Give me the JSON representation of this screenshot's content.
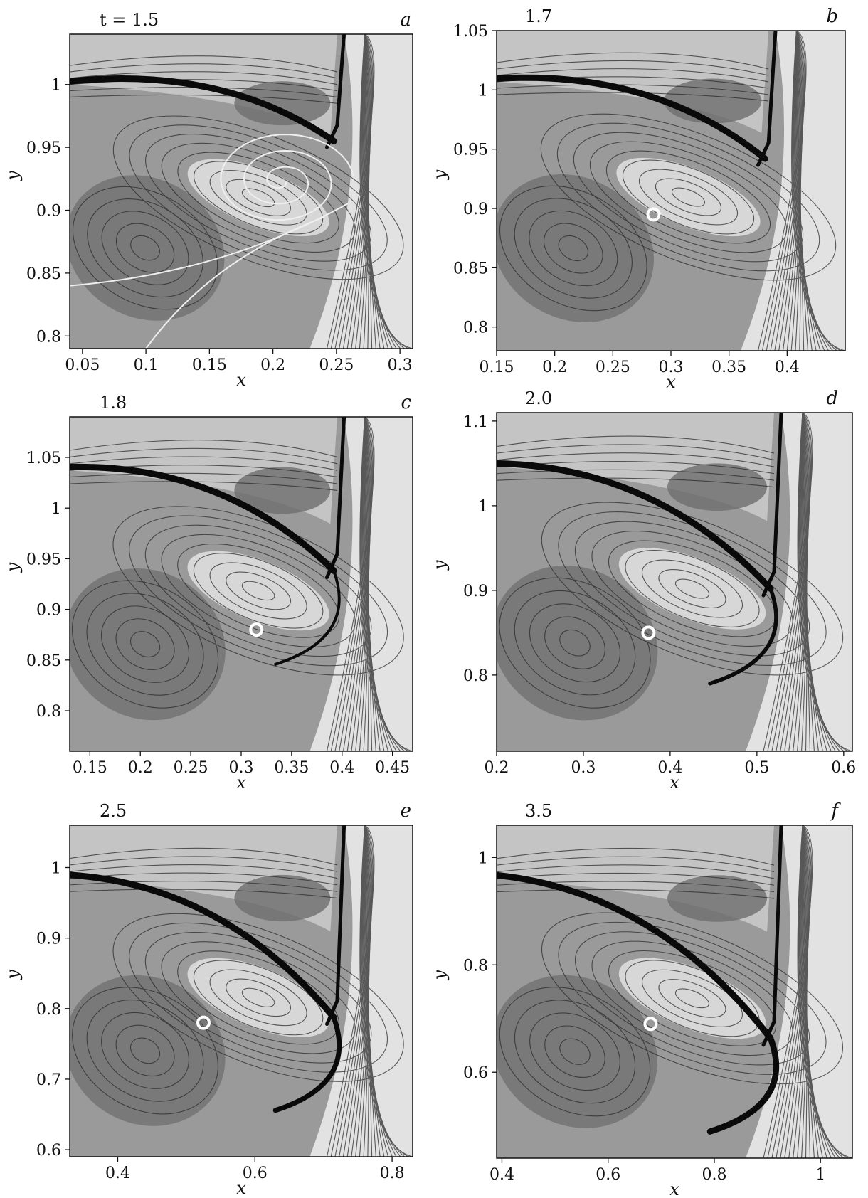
{
  "figure": {
    "time_prefix": "t = ",
    "panels": [
      {
        "letter": "a",
        "time": "1.5",
        "time_text": "t = 1.5",
        "xlabel": "x",
        "ylabel": "y",
        "xticks": [
          "0.05",
          "0.1",
          "0.15",
          "0.2",
          "0.25",
          "0.3"
        ],
        "yticks": [
          "0.8",
          "0.85",
          "0.9",
          "0.95",
          "1"
        ],
        "xlim": [
          0.04,
          0.31
        ],
        "ylim": [
          0.79,
          1.04
        ],
        "marker": null,
        "spiral_center": [
          0.207,
          0.923
        ]
      },
      {
        "letter": "b",
        "time": "1.7",
        "time_text": "1.7",
        "xlabel": "x",
        "ylabel": "y",
        "xticks": [
          "0.15",
          "0.2",
          "0.25",
          "0.3",
          "0.35",
          "0.4"
        ],
        "yticks": [
          "0.8",
          "0.85",
          "0.9",
          "0.95",
          "1",
          "1.05"
        ],
        "xlim": [
          0.15,
          0.45
        ],
        "ylim": [
          0.78,
          1.05
        ],
        "marker": [
          0.285,
          0.895
        ]
      },
      {
        "letter": "c",
        "time": "1.8",
        "time_text": "1.8",
        "xlabel": "x",
        "ylabel": "y",
        "xticks": [
          "0.15",
          "0.2",
          "0.25",
          "0.3",
          "0.35",
          "0.4",
          "0.45"
        ],
        "yticks": [
          "0.8",
          "0.85",
          "0.9",
          "0.95",
          "1",
          "1.05"
        ],
        "xlim": [
          0.13,
          0.47
        ],
        "ylim": [
          0.76,
          1.09
        ],
        "marker": [
          0.315,
          0.88
        ]
      },
      {
        "letter": "d",
        "time": "2.0",
        "time_text": "2.0",
        "xlabel": "x",
        "ylabel": "y",
        "xticks": [
          "0.2",
          "0.3",
          "0.4",
          "0.5",
          "0.6"
        ],
        "yticks": [
          "0.8",
          "0.9",
          "1",
          "1.1"
        ],
        "xlim": [
          0.2,
          0.61
        ],
        "ylim": [
          0.71,
          1.11
        ],
        "marker": [
          0.375,
          0.85
        ]
      },
      {
        "letter": "e",
        "time": "2.5",
        "time_text": "2.5",
        "xlabel": "x",
        "ylabel": "y",
        "xticks": [
          "0.4",
          "0.6",
          "0.8"
        ],
        "yticks": [
          "0.6",
          "0.7",
          "0.8",
          "0.9",
          "1"
        ],
        "xlim": [
          0.33,
          0.83
        ],
        "ylim": [
          0.59,
          1.06
        ],
        "marker": [
          0.525,
          0.78
        ]
      },
      {
        "letter": "f",
        "time": "3.5",
        "time_text": "3.5",
        "xlabel": "x",
        "ylabel": "y",
        "xticks": [
          "0.4",
          "0.6",
          "0.8",
          "1"
        ],
        "yticks": [
          "0.6",
          "0.8",
          "1"
        ],
        "xlim": [
          0.39,
          1.06
        ],
        "ylim": [
          0.44,
          1.06
        ],
        "marker": [
          0.68,
          0.69
        ]
      }
    ]
  },
  "colors": {
    "field_dark": "#6e6e6e",
    "field_mid": "#9a9a9a",
    "field_light": "#c4c4c4",
    "field_pale": "#e2e2e2",
    "contour": "#2a2a2a",
    "shock": "#0a0a0a",
    "marker": "#ffffff"
  }
}
